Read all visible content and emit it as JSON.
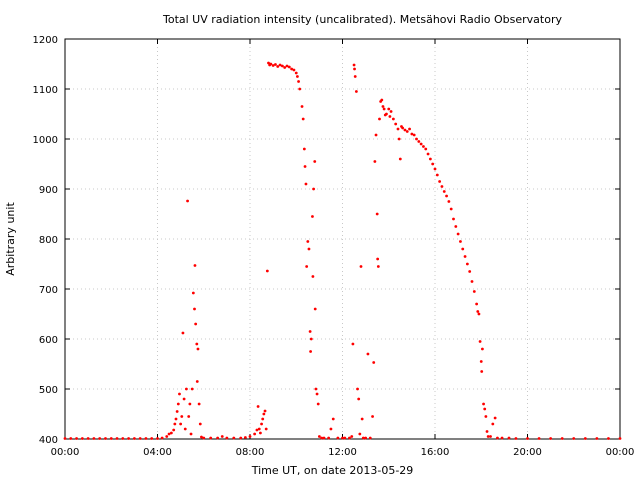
{
  "chart_data": {
    "type": "scatter",
    "title": "Total UV radiation intensity (uncalibrated). Metsähovi Radio Observatory",
    "xlabel": "Time UT, on date 2013-05-29",
    "ylabel": "Arbitrary unit",
    "xlim": [
      0,
      24
    ],
    "ylim": [
      400,
      1200
    ],
    "x_ticks": [
      0,
      4,
      8,
      12,
      16,
      20,
      24
    ],
    "x_tick_labels": [
      "00:00",
      "04:00",
      "08:00",
      "12:00",
      "16:00",
      "20:00",
      "00:00"
    ],
    "y_ticks": [
      400,
      500,
      600,
      700,
      800,
      900,
      1000,
      1100,
      1200
    ],
    "y_tick_labels": [
      "400",
      "500",
      "600",
      "700",
      "800",
      "900",
      "1000",
      "1100",
      "1200"
    ],
    "grid": true,
    "marker_color": "#ff0000",
    "series": [
      {
        "points": [
          [
            0.0,
            401
          ],
          [
            0.25,
            401
          ],
          [
            0.5,
            401
          ],
          [
            0.75,
            401
          ],
          [
            1.0,
            401
          ],
          [
            1.25,
            401
          ],
          [
            1.5,
            401
          ],
          [
            1.75,
            401
          ],
          [
            2.0,
            401
          ],
          [
            2.25,
            401
          ],
          [
            2.5,
            401
          ],
          [
            2.75,
            401
          ],
          [
            3.0,
            401
          ],
          [
            3.25,
            401
          ],
          [
            3.5,
            401
          ],
          [
            3.75,
            401
          ],
          [
            4.0,
            401
          ],
          [
            4.2,
            402
          ],
          [
            4.4,
            405
          ],
          [
            4.5,
            410
          ],
          [
            4.6,
            412
          ],
          [
            4.7,
            418
          ],
          [
            4.75,
            430
          ],
          [
            4.8,
            440
          ],
          [
            4.85,
            455
          ],
          [
            4.9,
            470
          ],
          [
            4.95,
            490
          ],
          [
            5.0,
            430
          ],
          [
            5.05,
            445
          ],
          [
            5.1,
            612
          ],
          [
            5.15,
            480
          ],
          [
            5.2,
            420
          ],
          [
            5.25,
            500
          ],
          [
            5.3,
            876
          ],
          [
            5.35,
            445
          ],
          [
            5.4,
            470
          ],
          [
            5.45,
            410
          ],
          [
            5.5,
            500
          ],
          [
            5.55,
            692
          ],
          [
            5.6,
            660
          ],
          [
            5.62,
            747
          ],
          [
            5.65,
            630
          ],
          [
            5.7,
            590
          ],
          [
            5.72,
            515
          ],
          [
            5.75,
            580
          ],
          [
            5.8,
            470
          ],
          [
            5.85,
            430
          ],
          [
            5.9,
            404
          ],
          [
            6.0,
            402
          ],
          [
            6.3,
            402
          ],
          [
            6.6,
            402
          ],
          [
            6.8,
            405
          ],
          [
            7.0,
            402
          ],
          [
            7.3,
            402
          ],
          [
            7.6,
            402
          ],
          [
            7.8,
            403
          ],
          [
            8.0,
            405
          ],
          [
            8.2,
            410
          ],
          [
            8.3,
            418
          ],
          [
            8.35,
            465
          ],
          [
            8.4,
            420
          ],
          [
            8.45,
            412
          ],
          [
            8.5,
            430
          ],
          [
            8.55,
            440
          ],
          [
            8.6,
            450
          ],
          [
            8.65,
            456
          ],
          [
            8.7,
            420
          ],
          [
            8.75,
            736
          ],
          [
            8.8,
            1152
          ],
          [
            8.85,
            1148
          ],
          [
            8.9,
            1150
          ],
          [
            9.0,
            1147
          ],
          [
            9.1,
            1149
          ],
          [
            9.2,
            1145
          ],
          [
            9.3,
            1148
          ],
          [
            9.4,
            1146
          ],
          [
            9.5,
            1143
          ],
          [
            9.6,
            1146
          ],
          [
            9.7,
            1144
          ],
          [
            9.8,
            1140
          ],
          [
            9.9,
            1138
          ],
          [
            10.0,
            1132
          ],
          [
            10.05,
            1125
          ],
          [
            10.1,
            1115
          ],
          [
            10.15,
            1100
          ],
          [
            10.25,
            1065
          ],
          [
            10.3,
            1040
          ],
          [
            10.35,
            980
          ],
          [
            10.38,
            945
          ],
          [
            10.42,
            910
          ],
          [
            10.45,
            745
          ],
          [
            10.5,
            795
          ],
          [
            10.55,
            780
          ],
          [
            10.6,
            615
          ],
          [
            10.62,
            575
          ],
          [
            10.65,
            600
          ],
          [
            10.7,
            845
          ],
          [
            10.72,
            725
          ],
          [
            10.75,
            900
          ],
          [
            10.8,
            955
          ],
          [
            10.82,
            660
          ],
          [
            10.85,
            500
          ],
          [
            10.9,
            490
          ],
          [
            10.95,
            470
          ],
          [
            11.0,
            405
          ],
          [
            11.1,
            402
          ],
          [
            11.2,
            402
          ],
          [
            11.4,
            402
          ],
          [
            11.5,
            420
          ],
          [
            11.6,
            440
          ],
          [
            11.8,
            402
          ],
          [
            12.0,
            402
          ],
          [
            12.1,
            402
          ],
          [
            12.3,
            402
          ],
          [
            12.4,
            405
          ],
          [
            12.45,
            590
          ],
          [
            12.5,
            1148
          ],
          [
            12.52,
            1140
          ],
          [
            12.55,
            1125
          ],
          [
            12.6,
            1095
          ],
          [
            12.65,
            500
          ],
          [
            12.7,
            480
          ],
          [
            12.75,
            410
          ],
          [
            12.8,
            745
          ],
          [
            12.85,
            440
          ],
          [
            12.9,
            402
          ],
          [
            13.0,
            402
          ],
          [
            13.1,
            570
          ],
          [
            13.2,
            402
          ],
          [
            13.3,
            445
          ],
          [
            13.35,
            553
          ],
          [
            13.4,
            955
          ],
          [
            13.45,
            1008
          ],
          [
            13.5,
            850
          ],
          [
            13.52,
            760
          ],
          [
            13.55,
            745
          ],
          [
            13.6,
            1040
          ],
          [
            13.65,
            1075
          ],
          [
            13.7,
            1078
          ],
          [
            13.75,
            1065
          ],
          [
            13.8,
            1060
          ],
          [
            13.85,
            1048
          ],
          [
            13.9,
            1050
          ],
          [
            14.0,
            1060
          ],
          [
            14.05,
            1045
          ],
          [
            14.1,
            1055
          ],
          [
            14.2,
            1040
          ],
          [
            14.3,
            1030
          ],
          [
            14.4,
            1020
          ],
          [
            14.45,
            1000
          ],
          [
            14.5,
            960
          ],
          [
            14.55,
            1025
          ],
          [
            14.6,
            1022
          ],
          [
            14.7,
            1018
          ],
          [
            14.8,
            1015
          ],
          [
            14.9,
            1020
          ],
          [
            15.0,
            1010
          ],
          [
            15.1,
            1008
          ],
          [
            15.2,
            1000
          ],
          [
            15.3,
            995
          ],
          [
            15.4,
            990
          ],
          [
            15.5,
            985
          ],
          [
            15.6,
            980
          ],
          [
            15.7,
            970
          ],
          [
            15.8,
            960
          ],
          [
            15.9,
            950
          ],
          [
            16.0,
            940
          ],
          [
            16.1,
            928
          ],
          [
            16.2,
            915
          ],
          [
            16.3,
            905
          ],
          [
            16.4,
            895
          ],
          [
            16.5,
            886
          ],
          [
            16.6,
            875
          ],
          [
            16.7,
            860
          ],
          [
            16.8,
            840
          ],
          [
            16.9,
            825
          ],
          [
            17.0,
            810
          ],
          [
            17.1,
            795
          ],
          [
            17.2,
            780
          ],
          [
            17.3,
            765
          ],
          [
            17.4,
            750
          ],
          [
            17.5,
            735
          ],
          [
            17.6,
            715
          ],
          [
            17.7,
            695
          ],
          [
            17.8,
            670
          ],
          [
            17.85,
            655
          ],
          [
            17.9,
            650
          ],
          [
            17.95,
            595
          ],
          [
            18.0,
            555
          ],
          [
            18.02,
            535
          ],
          [
            18.05,
            580
          ],
          [
            18.1,
            470
          ],
          [
            18.15,
            460
          ],
          [
            18.2,
            445
          ],
          [
            18.25,
            415
          ],
          [
            18.3,
            405
          ],
          [
            18.4,
            405
          ],
          [
            18.5,
            430
          ],
          [
            18.6,
            442
          ],
          [
            18.7,
            402
          ],
          [
            18.9,
            402
          ],
          [
            19.2,
            402
          ],
          [
            19.5,
            401
          ],
          [
            20.0,
            401
          ],
          [
            20.5,
            401
          ],
          [
            21.0,
            401
          ],
          [
            21.5,
            401
          ],
          [
            22.0,
            401
          ],
          [
            22.5,
            401
          ],
          [
            23.0,
            401
          ],
          [
            23.5,
            401
          ],
          [
            24.0,
            401
          ]
        ]
      }
    ]
  }
}
